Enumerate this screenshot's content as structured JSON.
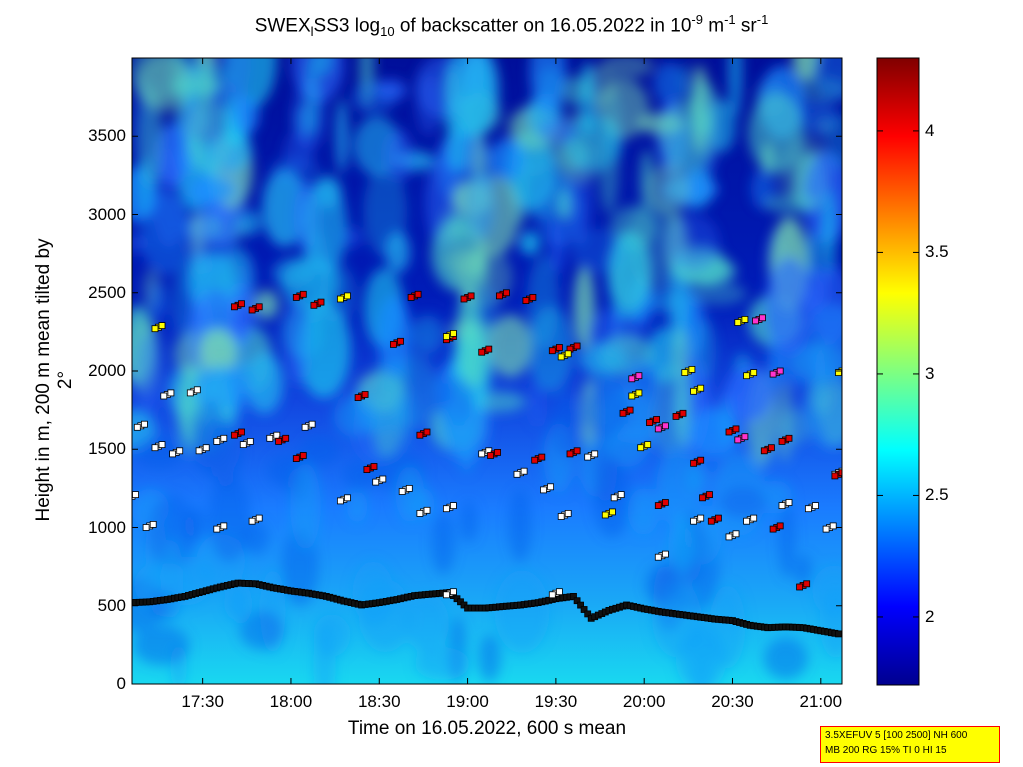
{
  "title": {
    "prefix": "SWEX",
    "sub1": "l",
    "mid": "SS3 log",
    "sub2": "10",
    "mid2": " of backscatter on 16.05.2022 in 10",
    "sup1": "-9",
    "mid3": " m",
    "sup2": "-1",
    "mid4": " sr",
    "sup3": "-1"
  },
  "info_box": {
    "line1": "3.5XEFUV 5 [100 2500] NH 600",
    "line2": "MB 200 RG 15% TI 0 HI 15"
  },
  "colors": {
    "background_low": "#00008f",
    "cloud_mid": "#1e90ff",
    "boundary_layer": "#00e5e5",
    "marker_red": "#e00000",
    "marker_white": "#ffffff",
    "marker_yellow": "#ffff00",
    "marker_magenta": "#ff33cc",
    "marker_dark": "#111111"
  },
  "chart_data": {
    "type": "heatmap",
    "xlabel": "Time on 16.05.2022, 600 s mean",
    "ylabel": "Height in m, 200 m mean tilted by 2°",
    "x_ticks": [
      "17:30",
      "18:00",
      "18:30",
      "19:00",
      "19:30",
      "20:00",
      "20:30",
      "21:00"
    ],
    "x_tick_hours": [
      17.5,
      18.0,
      18.5,
      19.0,
      19.5,
      20.0,
      20.5,
      21.0
    ],
    "xlim_hours": [
      17.1,
      21.12
    ],
    "y_ticks": [
      0,
      500,
      1000,
      1500,
      2000,
      2500,
      3000,
      3500
    ],
    "ylim": [
      0,
      4000
    ],
    "colorbar": {
      "ticks": [
        "2",
        "2.5",
        "3",
        "3.5",
        "4"
      ],
      "tick_values": [
        2,
        2.5,
        3,
        3.5,
        4
      ],
      "range": [
        1.72,
        4.3
      ],
      "colormap": "jet"
    },
    "series": [
      {
        "marker": "dark-square",
        "points": [
          [
            17.1,
            520
          ],
          [
            17.2,
            525
          ],
          [
            17.3,
            540
          ],
          [
            17.4,
            560
          ],
          [
            17.5,
            590
          ],
          [
            17.6,
            620
          ],
          [
            17.7,
            645
          ],
          [
            17.8,
            640
          ],
          [
            17.9,
            615
          ],
          [
            18.0,
            595
          ],
          [
            18.1,
            580
          ],
          [
            18.2,
            560
          ],
          [
            18.3,
            530
          ],
          [
            18.4,
            505
          ],
          [
            18.5,
            520
          ],
          [
            18.6,
            540
          ],
          [
            18.7,
            565
          ],
          [
            18.8,
            575
          ],
          [
            18.9,
            585
          ],
          [
            19.0,
            485
          ],
          [
            19.1,
            485
          ],
          [
            19.2,
            495
          ],
          [
            19.3,
            505
          ],
          [
            19.4,
            520
          ],
          [
            19.5,
            545
          ],
          [
            19.6,
            560
          ],
          [
            19.7,
            420
          ],
          [
            19.8,
            470
          ],
          [
            19.9,
            505
          ],
          [
            20.0,
            480
          ],
          [
            20.1,
            460
          ],
          [
            20.2,
            445
          ],
          [
            20.3,
            430
          ],
          [
            20.4,
            415
          ],
          [
            20.5,
            405
          ],
          [
            20.6,
            375
          ],
          [
            20.7,
            360
          ],
          [
            20.8,
            365
          ],
          [
            20.9,
            360
          ],
          [
            21.0,
            340
          ],
          [
            21.1,
            320
          ]
        ]
      },
      {
        "marker": "white-square",
        "points": [
          [
            17.1,
            1200
          ],
          [
            17.15,
            1650
          ],
          [
            17.25,
            1520
          ],
          [
            17.35,
            1480
          ],
          [
            17.5,
            1500
          ],
          [
            17.6,
            1560
          ],
          [
            17.75,
            1540
          ],
          [
            17.9,
            1580
          ],
          [
            17.3,
            1850
          ],
          [
            17.45,
            1870
          ],
          [
            17.2,
            1010
          ],
          [
            17.6,
            1000
          ],
          [
            18.1,
            1650
          ],
          [
            18.3,
            1180
          ],
          [
            18.5,
            1300
          ],
          [
            18.65,
            1240
          ],
          [
            18.75,
            1100
          ],
          [
            18.9,
            1130
          ],
          [
            19.1,
            1480
          ],
          [
            19.3,
            1350
          ],
          [
            19.45,
            1250
          ],
          [
            19.55,
            1080
          ],
          [
            19.7,
            1460
          ],
          [
            19.85,
            1200
          ],
          [
            20.1,
            820
          ],
          [
            20.3,
            1050
          ],
          [
            20.5,
            950
          ],
          [
            20.6,
            1050
          ],
          [
            20.8,
            1150
          ],
          [
            20.95,
            1130
          ],
          [
            21.05,
            1000
          ],
          [
            21.1,
            1350
          ],
          [
            18.9,
            580
          ],
          [
            19.5,
            580
          ],
          [
            17.8,
            1050
          ]
        ]
      },
      {
        "marker": "red-square",
        "points": [
          [
            17.7,
            2420
          ],
          [
            17.8,
            2400
          ],
          [
            18.05,
            2480
          ],
          [
            18.15,
            2430
          ],
          [
            18.7,
            2480
          ],
          [
            19.0,
            2470
          ],
          [
            19.2,
            2490
          ],
          [
            19.35,
            2460
          ],
          [
            19.5,
            2140
          ],
          [
            19.6,
            2150
          ],
          [
            18.9,
            2210
          ],
          [
            18.6,
            2180
          ],
          [
            18.4,
            1840
          ],
          [
            18.75,
            1600
          ],
          [
            19.15,
            1470
          ],
          [
            19.4,
            1440
          ],
          [
            19.1,
            2130
          ],
          [
            18.45,
            1380
          ],
          [
            19.9,
            1740
          ],
          [
            20.05,
            1680
          ],
          [
            20.2,
            1720
          ],
          [
            20.35,
            1200
          ],
          [
            20.5,
            1620
          ],
          [
            20.7,
            1500
          ],
          [
            20.8,
            1560
          ],
          [
            21.1,
            1340
          ],
          [
            20.4,
            1050
          ],
          [
            20.75,
            1000
          ],
          [
            17.7,
            1600
          ],
          [
            17.95,
            1560
          ],
          [
            18.05,
            1450
          ],
          [
            19.6,
            1480
          ],
          [
            20.1,
            1150
          ],
          [
            20.3,
            1420
          ],
          [
            20.9,
            630
          ]
        ]
      },
      {
        "marker": "yellow-square",
        "points": [
          [
            17.25,
            2280
          ],
          [
            18.9,
            2230
          ],
          [
            19.55,
            2100
          ],
          [
            20.25,
            2000
          ],
          [
            20.3,
            1880
          ],
          [
            20.55,
            2320
          ],
          [
            20.6,
            1980
          ],
          [
            21.12,
            2000
          ],
          [
            20.0,
            1520
          ],
          [
            19.8,
            1090
          ],
          [
            18.3,
            2470
          ],
          [
            19.95,
            1850
          ]
        ]
      },
      {
        "marker": "magenta-square",
        "points": [
          [
            20.55,
            1570
          ],
          [
            20.65,
            2330
          ],
          [
            20.75,
            1990
          ],
          [
            20.1,
            1640
          ],
          [
            19.95,
            1960
          ]
        ]
      }
    ]
  }
}
